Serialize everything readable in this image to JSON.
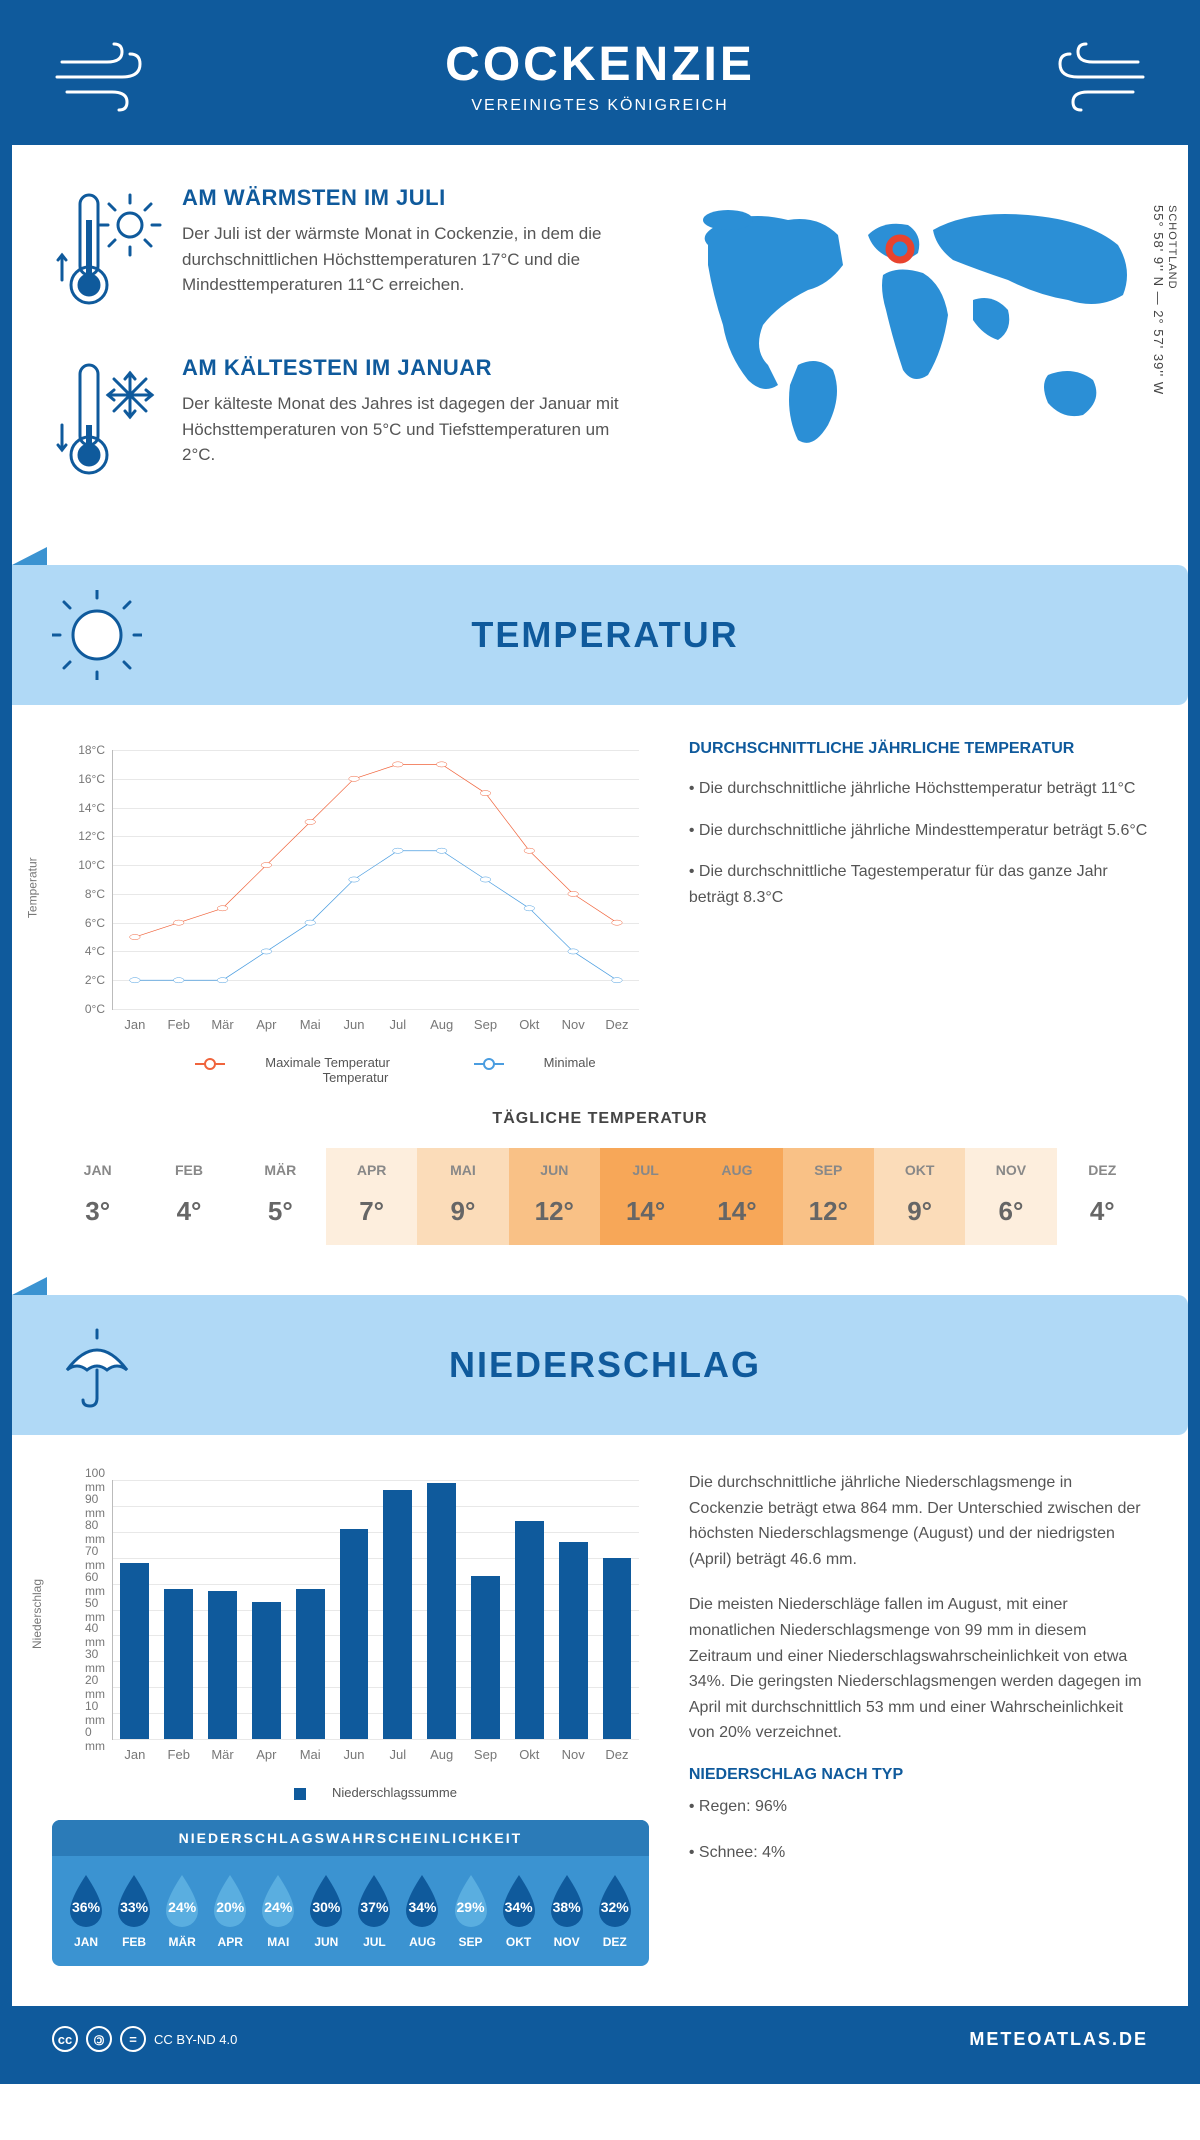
{
  "header": {
    "title": "COCKENZIE",
    "subtitle": "VEREINIGTES KÖNIGREICH"
  },
  "coords": {
    "region": "SCHOTTLAND",
    "lat": "55° 58' 9'' N",
    "lon": "2° 57' 39'' W"
  },
  "warmest": {
    "title": "AM WÄRMSTEN IM JULI",
    "text": "Der Juli ist der wärmste Monat in Cockenzie, in dem die durchschnittlichen Höchsttemperaturen 17°C und die Mindesttemperaturen 11°C erreichen."
  },
  "coldest": {
    "title": "AM KÄLTESTEN IM JANUAR",
    "text": "Der kälteste Monat des Jahres ist dagegen der Januar mit Höchsttemperaturen von 5°C und Tiefsttemperaturen um 2°C."
  },
  "colors": {
    "primary": "#0f5a9c",
    "light": "#b0d9f6",
    "mid": "#3b93d1",
    "max_line": "#f0643c",
    "min_line": "#4a9de0",
    "grid": "#e8e8e8",
    "axis": "#bbbbbb",
    "text": "#555555"
  },
  "temp_section": {
    "title": "TEMPERATUR"
  },
  "temp_chart": {
    "type": "line",
    "months": [
      "Jan",
      "Feb",
      "Mär",
      "Apr",
      "Mai",
      "Jun",
      "Jul",
      "Aug",
      "Sep",
      "Okt",
      "Nov",
      "Dez"
    ],
    "max": [
      5,
      6,
      7,
      10,
      13,
      16,
      17,
      17,
      15,
      11,
      8,
      6
    ],
    "min": [
      2,
      2,
      2,
      4,
      6,
      9,
      11,
      11,
      9,
      7,
      4,
      2
    ],
    "ylim": [
      0,
      18
    ],
    "ytick_step": 2,
    "yunit": "°C",
    "ylabel": "Temperatur",
    "legend_max": "Maximale Temperatur",
    "legend_min": "Minimale Temperatur"
  },
  "temp_text": {
    "title": "DURCHSCHNITTLICHE JÄHRLICHE TEMPERATUR",
    "b1": "• Die durchschnittliche jährliche Höchsttemperatur beträgt 11°C",
    "b2": "• Die durchschnittliche jährliche Mindesttemperatur beträgt 5.6°C",
    "b3": "• Die durchschnittliche Tagestemperatur für das ganze Jahr beträgt 8.3°C"
  },
  "daily": {
    "title": "TÄGLICHE TEMPERATUR",
    "months": [
      "JAN",
      "FEB",
      "MÄR",
      "APR",
      "MAI",
      "JUN",
      "JUL",
      "AUG",
      "SEP",
      "OKT",
      "NOV",
      "DEZ"
    ],
    "values": [
      "3°",
      "4°",
      "5°",
      "7°",
      "9°",
      "12°",
      "14°",
      "14°",
      "12°",
      "9°",
      "6°",
      "4°"
    ],
    "cell_colors": [
      "#ffffff",
      "#ffffff",
      "#ffffff",
      "#fdeedd",
      "#fbdcb9",
      "#f9c186",
      "#f7a758",
      "#f7a758",
      "#f9c186",
      "#fbdcb9",
      "#fdeedd",
      "#ffffff"
    ]
  },
  "precip_section": {
    "title": "NIEDERSCHLAG"
  },
  "precip_chart": {
    "type": "bar",
    "months": [
      "Jan",
      "Feb",
      "Mär",
      "Apr",
      "Mai",
      "Jun",
      "Jul",
      "Aug",
      "Sep",
      "Okt",
      "Nov",
      "Dez"
    ],
    "values": [
      68,
      58,
      57,
      53,
      58,
      81,
      96,
      99,
      63,
      84,
      76,
      70
    ],
    "ylim": [
      0,
      100
    ],
    "ytick_step": 10,
    "yunit": " mm",
    "ylabel": "Niederschlag",
    "legend": "Niederschlagssumme"
  },
  "precip_text": {
    "p1": "Die durchschnittliche jährliche Niederschlagsmenge in Cockenzie beträgt etwa 864 mm. Der Unterschied zwischen der höchsten Niederschlagsmenge (August) und der niedrigsten (April) beträgt 46.6 mm.",
    "p2": "Die meisten Niederschläge fallen im August, mit einer monatlichen Niederschlagsmenge von 99 mm in diesem Zeitraum und einer Niederschlagswahrscheinlichkeit von etwa 34%. Die geringsten Niederschlagsmengen werden dagegen im April mit durchschnittlich 53 mm und einer Wahrscheinlichkeit von 20% verzeichnet.",
    "type_title": "NIEDERSCHLAG NACH TYP",
    "type1": "• Regen: 96%",
    "type2": "• Schnee: 4%"
  },
  "probability": {
    "title": "NIEDERSCHLAGSWAHRSCHEINLICHKEIT",
    "months": [
      "JAN",
      "FEB",
      "MÄR",
      "APR",
      "MAI",
      "JUN",
      "JUL",
      "AUG",
      "SEP",
      "OKT",
      "NOV",
      "DEZ"
    ],
    "values": [
      "36%",
      "33%",
      "24%",
      "20%",
      "24%",
      "30%",
      "37%",
      "34%",
      "29%",
      "34%",
      "38%",
      "32%"
    ],
    "drop_colors": [
      "#0f5a9c",
      "#0f5a9c",
      "#5aaee0",
      "#5aaee0",
      "#5aaee0",
      "#0f5a9c",
      "#0f5a9c",
      "#0f5a9c",
      "#5aaee0",
      "#0f5a9c",
      "#0f5a9c",
      "#0f5a9c"
    ]
  },
  "footer": {
    "license": "CC BY-ND 4.0",
    "brand": "METEOATLAS.DE"
  }
}
